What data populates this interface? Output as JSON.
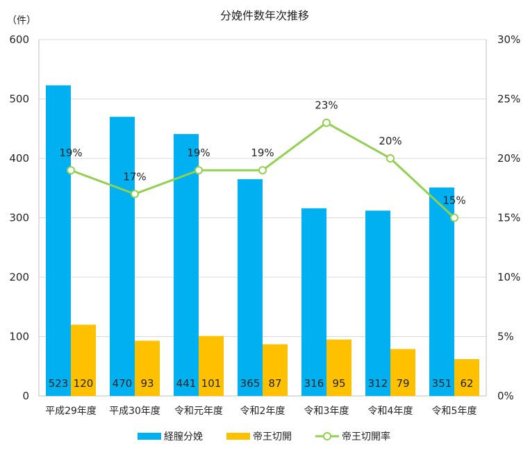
{
  "chart_data": {
    "type": "bar",
    "title": "分娩件数年次推移",
    "y_unit_label": "（件）",
    "categories": [
      "平成29年度",
      "平成30年度",
      "令和元年度",
      "令和2年度",
      "令和3年度",
      "令和4年度",
      "令和5年度"
    ],
    "series": [
      {
        "name": "経膣分娩",
        "type": "bar",
        "axis": "left",
        "color": "#00B0F0",
        "values": [
          523,
          470,
          441,
          365,
          316,
          312,
          351
        ]
      },
      {
        "name": "帝王切開",
        "type": "bar",
        "axis": "left",
        "color": "#FFC000",
        "values": [
          120,
          93,
          101,
          87,
          95,
          79,
          62
        ]
      },
      {
        "name": "帝王切開率",
        "type": "line",
        "axis": "right",
        "color": "#92D050",
        "values": [
          19,
          17,
          19,
          19,
          23,
          20,
          15
        ],
        "labels": [
          "19%",
          "17%",
          "19%",
          "19%",
          "23%",
          "20%",
          "15%"
        ]
      }
    ],
    "y_left": {
      "min": 0,
      "max": 600,
      "ticks": [
        "0",
        "100",
        "200",
        "300",
        "400",
        "500",
        "600"
      ]
    },
    "y_right": {
      "min": 0,
      "max": 30,
      "ticks": [
        "0%",
        "5%",
        "10%",
        "15%",
        "20%",
        "25%",
        "30%"
      ]
    },
    "grid": true,
    "legend_position": "bottom"
  }
}
